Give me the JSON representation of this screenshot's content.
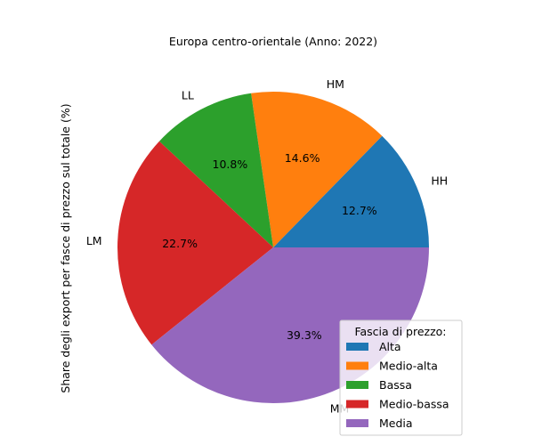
{
  "chart_data": {
    "type": "pie",
    "title": "Europa centro-orientale (Anno: 2022)",
    "ylabel": "Share degli export per fasce di prezzo sul totale (%)",
    "legend_title": "Fascia di prezzo:",
    "legend_position": "lower-right",
    "slices": [
      {
        "label": "HH",
        "legend": "Alta",
        "value": 12.7,
        "pct_text": "12.7%",
        "color": "#1f77b4"
      },
      {
        "label": "HM",
        "legend": "Medio-alta",
        "value": 14.6,
        "pct_text": "14.6%",
        "color": "#ff7f0e"
      },
      {
        "label": "LL",
        "legend": "Bassa",
        "value": 10.8,
        "pct_text": "10.8%",
        "color": "#2ca02c"
      },
      {
        "label": "LM",
        "legend": "Medio-bassa",
        "value": 22.7,
        "pct_text": "22.7%",
        "color": "#d62728"
      },
      {
        "label": "MM",
        "legend": "Media",
        "value": 39.3,
        "pct_text": "39.3%",
        "color": "#9467bd"
      }
    ]
  }
}
